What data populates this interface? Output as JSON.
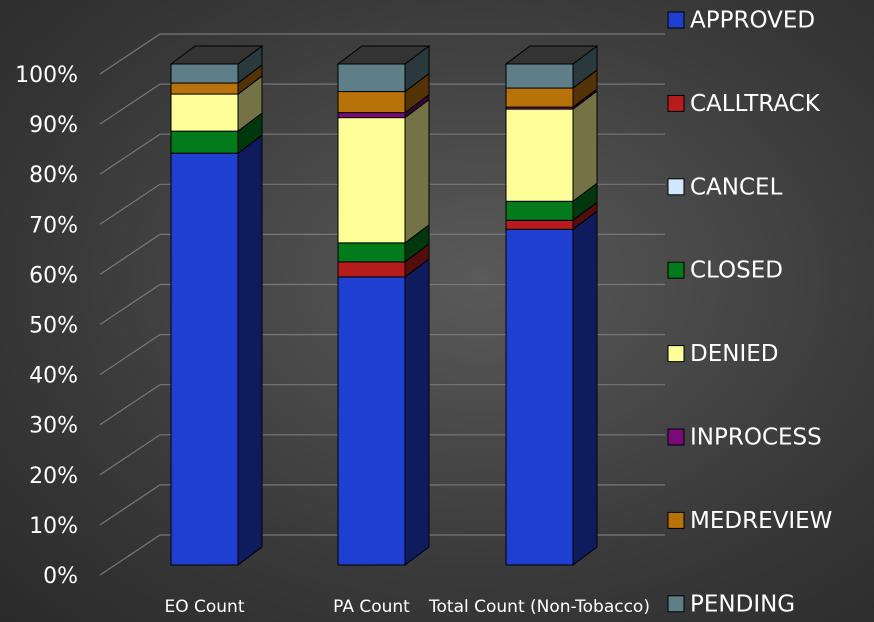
{
  "chart_data": {
    "type": "stacked_bar_3d",
    "categories": [
      "EO Count",
      "PA Count",
      "Total Count (Non-Tobacco)"
    ],
    "series": [
      {
        "name": "APPROVED",
        "color": "#1f3fd0",
        "values": [
          82.2,
          57.5,
          67.0
        ]
      },
      {
        "name": "CALLTRACK",
        "color": "#b71c1c",
        "values": [
          0,
          3.0,
          1.8
        ]
      },
      {
        "name": "CANCEL",
        "color": "#cfe8ff",
        "values": [
          0,
          0,
          0
        ]
      },
      {
        "name": "CLOSED",
        "color": "#007a1a",
        "values": [
          4.4,
          3.8,
          3.8
        ]
      },
      {
        "name": "DENIED",
        "color": "#ffff99",
        "values": [
          7.4,
          25.0,
          18.4
        ]
      },
      {
        "name": "INPROCESS",
        "color": "#7a0a7a",
        "values": [
          0,
          1.0,
          0.4
        ]
      },
      {
        "name": "MEDREVIEW",
        "color": "#b8720a",
        "values": [
          2.2,
          4.2,
          3.8
        ]
      },
      {
        "name": "PENDING",
        "color": "#5e7f88",
        "values": [
          3.8,
          5.5,
          4.8
        ]
      }
    ],
    "ylim": [
      0,
      100
    ],
    "yticks": [
      {
        "value": 0,
        "label": "0%"
      },
      {
        "value": 10,
        "label": "10%"
      },
      {
        "value": 20,
        "label": "20%"
      },
      {
        "value": 30,
        "label": "30%"
      },
      {
        "value": 40,
        "label": "40%"
      },
      {
        "value": 50,
        "label": "50%"
      },
      {
        "value": 60,
        "label": "60%"
      },
      {
        "value": 70,
        "label": "70%"
      },
      {
        "value": 80,
        "label": "80%"
      },
      {
        "value": 90,
        "label": "90%"
      },
      {
        "value": 100,
        "label": "100%"
      }
    ],
    "grid": true
  }
}
